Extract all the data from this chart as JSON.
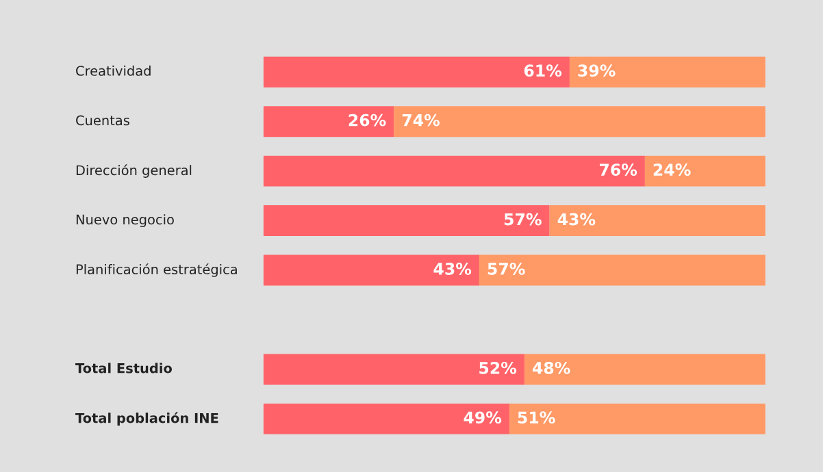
{
  "chart_data": {
    "type": "bar",
    "orientation": "horizontal",
    "stacked": true,
    "legend": false,
    "categories": [
      "Creatividad",
      "Cuentas",
      "Dirección general",
      "Nuevo negocio",
      "Planificación estratégica",
      null,
      "Total Estudio",
      "Total población INE"
    ],
    "series": [
      {
        "color": "#ff6369",
        "values": [
          61,
          26,
          76,
          57,
          43,
          null,
          52,
          49
        ],
        "value_labels": [
          "61%",
          "26%",
          "76%",
          "57%",
          "43%",
          null,
          "52%",
          "49%"
        ]
      },
      {
        "color": "#ff9966",
        "values": [
          39,
          74,
          24,
          43,
          57,
          null,
          48,
          51
        ],
        "value_labels": [
          "39%",
          "74%",
          "24%",
          "43%",
          "57%",
          null,
          "48%",
          "51%"
        ]
      }
    ]
  }
}
